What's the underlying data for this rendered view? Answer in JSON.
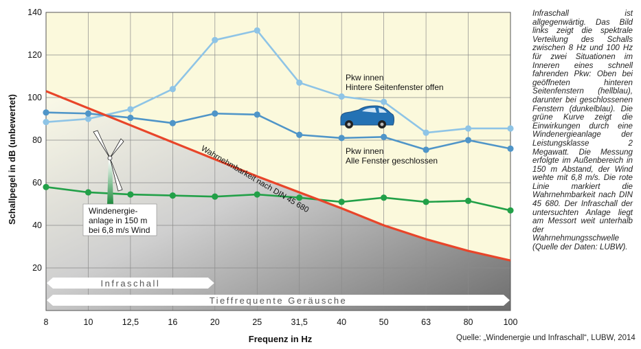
{
  "chart_data": {
    "type": "line",
    "title": "",
    "xlabel": "Frequenz in Hz",
    "ylabel": "Schallpegel in dB (unbewertet)",
    "categories": [
      "8",
      "10",
      "12,5",
      "16",
      "20",
      "25",
      "31,5",
      "40",
      "50",
      "63",
      "80",
      "100"
    ],
    "ylim": [
      0,
      140
    ],
    "yticks": [
      20,
      40,
      60,
      80,
      100,
      120,
      140
    ],
    "grid": true,
    "series": [
      {
        "name": "Pkw innen Hintere Seitenfenster offen",
        "color": "#8ec4e6",
        "values": [
          88.5,
          90,
          94.5,
          104,
          127,
          131.5,
          107,
          100.5,
          98,
          83.5,
          85.5,
          85.5
        ]
      },
      {
        "name": "Pkw innen Alle Fenster geschlossen",
        "color": "#4f95c8",
        "values": [
          93,
          92.5,
          90.5,
          88,
          92.5,
          92,
          82.5,
          81,
          81.5,
          75.5,
          80,
          76
        ]
      },
      {
        "name": "Windenergieanlage in 150 m bei 6,8 m/s Wind",
        "color": "#22a048",
        "values": [
          58,
          55.5,
          54.5,
          54,
          53.5,
          54.5,
          53,
          51,
          53,
          51,
          51.5,
          47
        ]
      },
      {
        "name": "Wahrnehmbarkeit nach DIN 45 680",
        "color": "#e8452a",
        "values": [
          103,
          95,
          87,
          79,
          71,
          63,
          55.5,
          48,
          40,
          33.5,
          28,
          23.5
        ]
      }
    ],
    "annotations": {
      "open_line1": "Pkw innen",
      "open_line2": "Hintere Seitenfenster offen",
      "closed_line1": "Pkw innen",
      "closed_line2": "Alle Fenster geschlossen",
      "din": "Wahrnehmbarkeit nach DIN 45 680",
      "wind_line1": "Windenergie-",
      "wind_line2": "anlage in 150 m",
      "wind_line3": "bei 6,8 m/s Wind"
    },
    "bands": [
      {
        "label": "Infraschall",
        "from_category": "8",
        "to_category": "20"
      },
      {
        "label": "Tieffrequente Geräusche",
        "from_category": "8",
        "to_category": "100"
      }
    ]
  },
  "caption": "Infraschall ist allgegenwärtig. Das Bild links zeigt die spektrale Verteilung des Schalls zwischen 8 Hz und 100 Hz für zwei Situationen im Inneren eines schnell fahrenden Pkw: Oben bei geöffneten hinteren Seitenfenstern (hellblau), darunter bei geschlossenen Fenstern (dunkelblau). Die grüne Kurve zeigt die Einwirkungen durch eine Windenergieanlage der Leistungsklasse 2 Megawatt. Die Messung erfolgte im Außenbereich in 150 m Abstand, der Wind wehte mit 6,8 m/s. Die rote Linie markiert die Wahrnehmbarkeit nach DIN 45 680. Der Infraschall der untersuchten Anlage liegt am Messort weit unterhalb der Wahrnehmungsschwelle (Quelle der Daten: LUBW).",
  "source": "Quelle: „Windenergie und Infraschall“, LUBW, 2014",
  "icons": {
    "car": "car-icon",
    "turbine": "wind-turbine-icon"
  }
}
